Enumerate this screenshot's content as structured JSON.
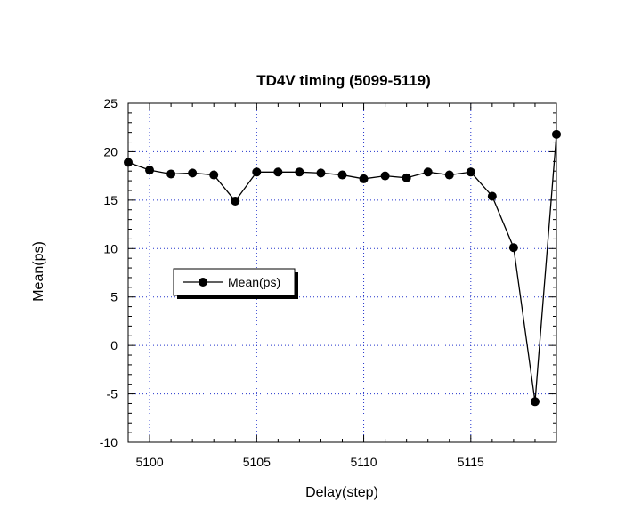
{
  "chart_data": {
    "type": "line",
    "title": "TD4V timing (5099-5119)",
    "xlabel": "Delay(step)",
    "ylabel": "Mean(ps)",
    "xlim": [
      5099,
      5119
    ],
    "ylim": [
      -10,
      25
    ],
    "xticks": [
      5100,
      5105,
      5110,
      5115
    ],
    "yticks": [
      -10,
      -5,
      0,
      5,
      10,
      15,
      20,
      25
    ],
    "x_minor_step": 1,
    "y_minor_step": 1,
    "grid": true,
    "legend_position": "middle-left",
    "series": [
      {
        "name": "Mean(ps)",
        "color": "#000000",
        "marker": "circle",
        "x": [
          5099,
          5100,
          5101,
          5102,
          5103,
          5104,
          5105,
          5106,
          5107,
          5108,
          5109,
          5110,
          5111,
          5112,
          5113,
          5114,
          5115,
          5116,
          5117,
          5118,
          5119
        ],
        "values": [
          18.9,
          18.1,
          17.7,
          17.8,
          17.6,
          14.9,
          17.9,
          17.9,
          17.9,
          17.8,
          17.6,
          17.2,
          17.5,
          17.3,
          17.9,
          17.6,
          17.9,
          15.4,
          10.1,
          -5.8,
          21.8
        ]
      }
    ]
  }
}
